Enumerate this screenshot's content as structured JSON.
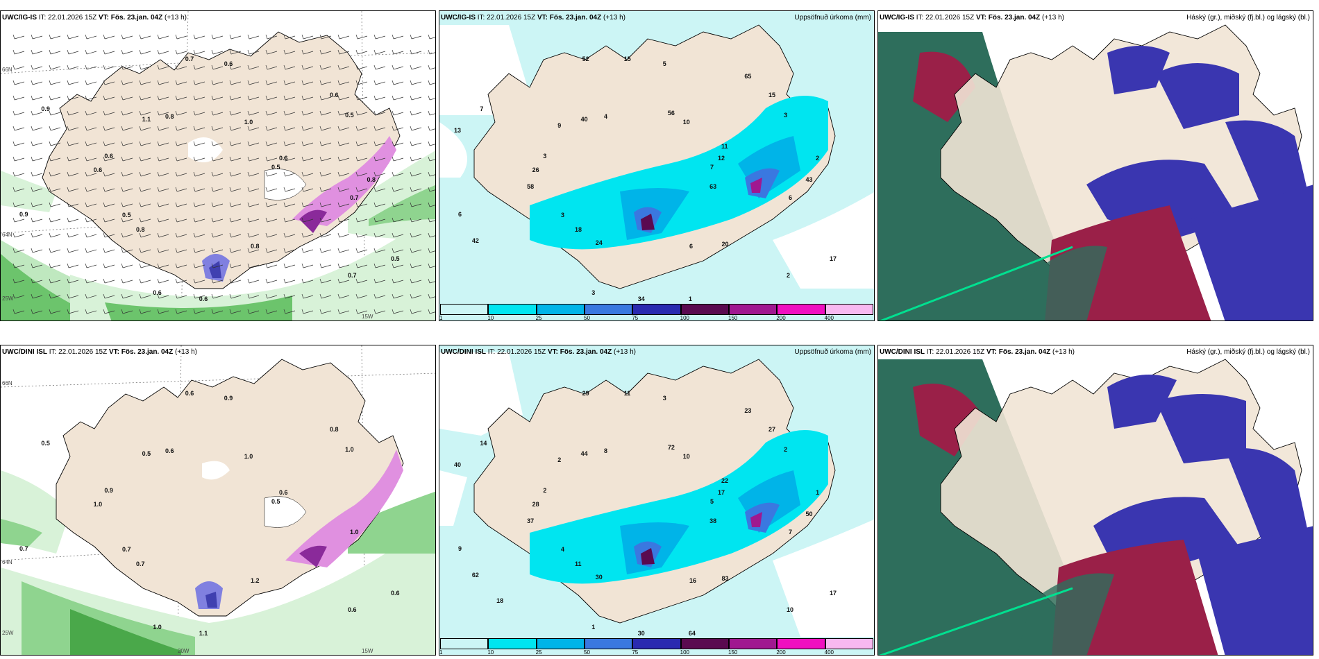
{
  "panels": [
    {
      "model": "UWC/IG-IS",
      "init": "IT: 22.01.2026 15Z",
      "valid_label": "VT:",
      "valid": "Fös. 23.jan. 04Z",
      "lead": "(+13 h)",
      "right_title": ""
    },
    {
      "model": "UWC/IG-IS",
      "init": "IT: 22.01.2026 15Z",
      "valid_label": "VT:",
      "valid": "Fös. 23.jan. 04Z",
      "lead": "(+13 h)",
      "right_title": "Uppsöfnuð úrkoma (mm)"
    },
    {
      "model": "UWC/IG-IS",
      "init": "IT: 22.01.2026 15Z",
      "valid_label": "VT:",
      "valid": "Fös. 23.jan. 04Z",
      "lead": "(+13 h)",
      "right_title": "Háský (gr.), miðský (fj.bl.) og lágský (bl.)"
    },
    {
      "model": "UWC/DINI ISL",
      "init": "IT: 22.01.2026 15Z",
      "valid_label": "VT:",
      "valid": "Fös. 23.jan. 04Z",
      "lead": "(+13 h)",
      "right_title": ""
    },
    {
      "model": "UWC/DINI ISL",
      "init": "IT: 22.01.2026 15Z",
      "valid_label": "VT:",
      "valid": "Fös. 23.jan. 04Z",
      "lead": "(+13 h)",
      "right_title": "Uppsöfnuð úrkoma (mm)"
    },
    {
      "model": "UWC/DINI ISL",
      "init": "IT: 22.01.2026 15Z",
      "valid_label": "VT:",
      "valid": "Fös. 23.jan. 04Z",
      "lead": "(+13 h)",
      "right_title": "Háský (gr.), miðský (fj.bl.) og lágský (bl.)"
    }
  ],
  "colorbar": {
    "ticks": [
      "1",
      "10",
      "25",
      "50",
      "75",
      "100",
      "150",
      "200",
      "400"
    ],
    "colors": [
      "#ccf5f5",
      "#00e5f0",
      "#00b4e8",
      "#3a78e0",
      "#2a2ab0",
      "#5a0a50",
      "#a01890",
      "#f010c0",
      "#f8b8f0"
    ]
  },
  "axis_labels": {
    "lat66": "66N",
    "lat64": "64N",
    "lon25": "25W",
    "lon20": "20W",
    "lon15": "15W"
  },
  "wind_panel_labels_top": [
    "0.5",
    "0.5",
    "0.6",
    "0.7",
    "0.6",
    "0.5",
    "0.6",
    "0.8",
    "0.7",
    "0.9",
    "1.0",
    "0.8",
    "0.9",
    "0.6",
    "0.8",
    "0.7",
    "0.5",
    "0.6",
    "0.6",
    "0.6",
    "1.1",
    "0.8"
  ],
  "wind_panel_labels_bottom": [
    "0.5",
    "0.7",
    "0.9",
    "0.6",
    "0.9",
    "1.0",
    "1.0",
    "0.6",
    "1.0",
    "0.7",
    "1.0",
    "1.2",
    "0.5",
    "0.6",
    "0.7",
    "0.6",
    "0.6",
    "1.0",
    "0.8",
    "1.1",
    "0.5"
  ],
  "precip_labels_top": [
    "7",
    "3",
    "5",
    "2",
    "3",
    "3",
    "3",
    "4",
    "6",
    "6",
    "10",
    "6",
    "7",
    "12",
    "18",
    "15",
    "17",
    "26",
    "15",
    "34",
    "40",
    "43",
    "42",
    "56",
    "20",
    "13",
    "11",
    "24",
    "52",
    "63",
    "58",
    "65",
    "1",
    "9",
    "2"
  ],
  "precip_labels_bottom": [
    "5",
    "4",
    "3",
    "10",
    "2",
    "2",
    "1",
    "8",
    "7",
    "9",
    "10",
    "16",
    "14",
    "17",
    "11",
    "11",
    "17",
    "28",
    "27",
    "30",
    "44",
    "50",
    "62",
    "72",
    "83",
    "40",
    "22",
    "30",
    "29",
    "38",
    "37",
    "23",
    "64",
    "2",
    "1",
    "18"
  ],
  "colors": {
    "land": "#f1e4d5",
    "coast": "#000000",
    "cloud_low": "#3a36b0",
    "cloud_mid": "#2e6e5c",
    "cloud_high": "#9a2048"
  }
}
